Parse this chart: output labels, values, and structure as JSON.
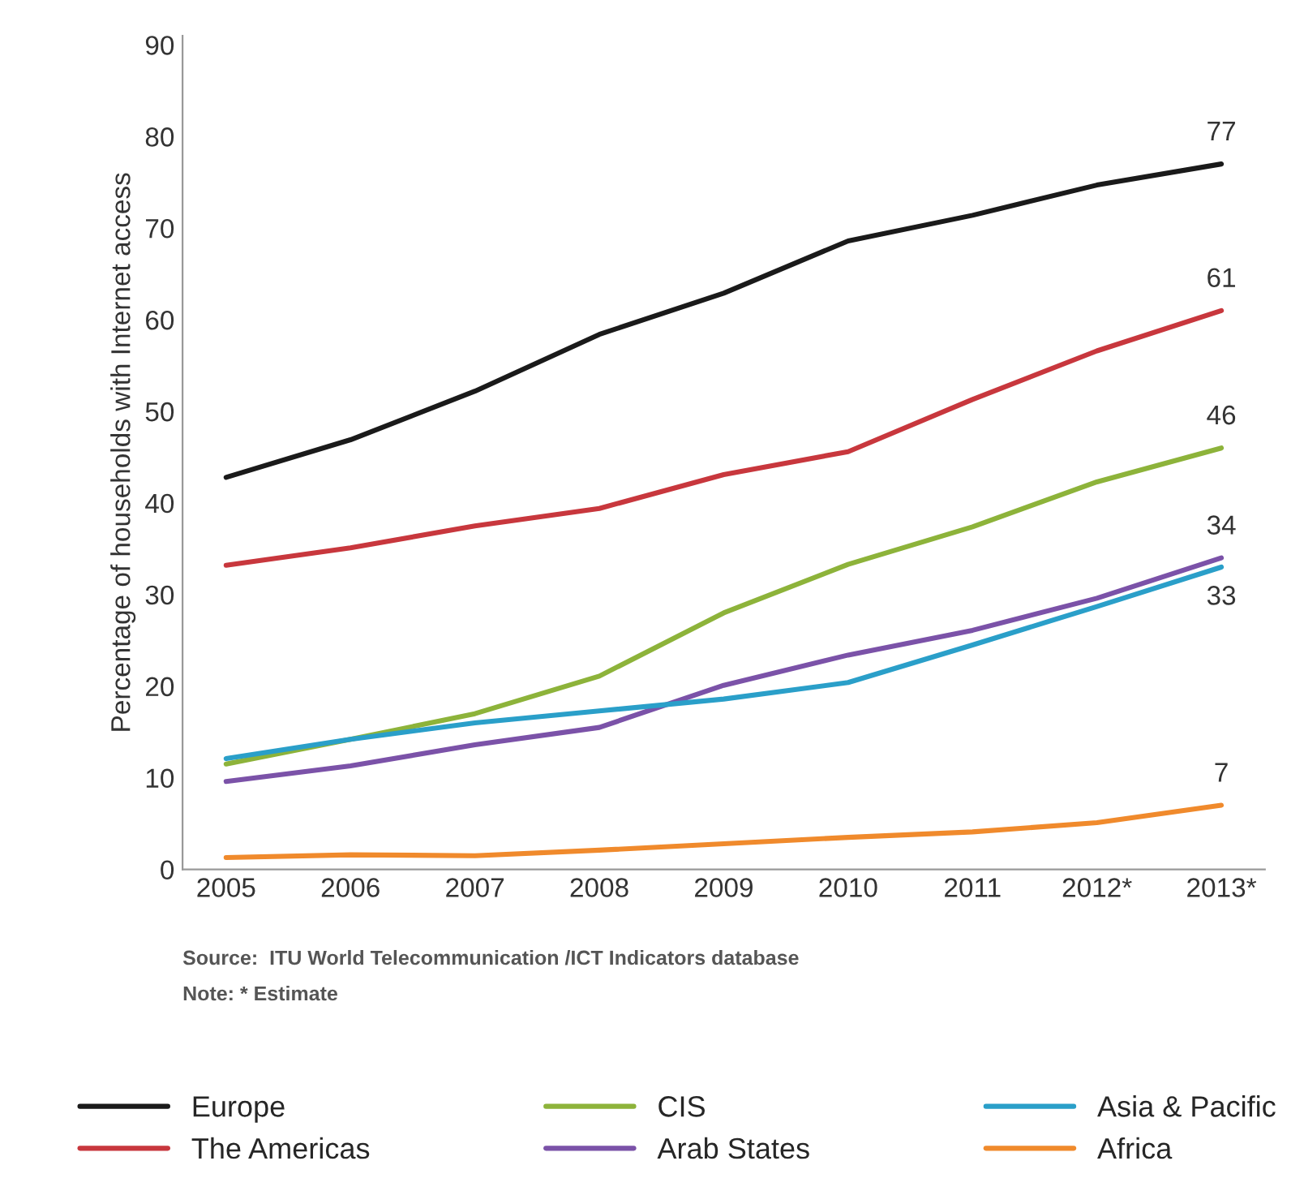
{
  "chart_data": {
    "type": "line",
    "ylabel": "Percentage of households with Internet access",
    "categories": [
      "2005",
      "2006",
      "2007",
      "2008",
      "2009",
      "2010",
      "2011",
      "2012*",
      "2013*"
    ],
    "series": [
      {
        "name": "Europe",
        "color": "#1a1a1a",
        "values": [
          42.8,
          46.9,
          52.2,
          58.4,
          62.9,
          68.6,
          71.4,
          74.7,
          77
        ],
        "value_labels": [
          null,
          null,
          null,
          null,
          null,
          null,
          null,
          null,
          "77"
        ]
      },
      {
        "name": "The Americas",
        "color": "#c8373d",
        "values": [
          33.2,
          35.1,
          37.5,
          39.4,
          43.1,
          45.6,
          51.3,
          56.6,
          61
        ],
        "value_labels": [
          null,
          null,
          null,
          null,
          null,
          null,
          null,
          null,
          "61"
        ]
      },
      {
        "name": "CIS",
        "color": "#8db33a",
        "values": [
          11.5,
          14.2,
          17,
          21.1,
          28,
          33.3,
          37.4,
          42.3,
          46
        ],
        "value_labels": [
          null,
          null,
          null,
          null,
          null,
          null,
          null,
          null,
          "46"
        ]
      },
      {
        "name": "Arab States",
        "color": "#7b52a8",
        "values": [
          9.6,
          11.3,
          13.6,
          15.5,
          20.1,
          23.4,
          26.1,
          29.6,
          34
        ],
        "value_labels": [
          null,
          null,
          null,
          null,
          null,
          null,
          null,
          null,
          "34"
        ]
      },
      {
        "name": "Asia & Pacific",
        "color": "#2a9fc9",
        "values": [
          12.1,
          14.2,
          16,
          17.3,
          18.6,
          20.4,
          24.5,
          28.7,
          33
        ],
        "value_labels": [
          null,
          null,
          null,
          null,
          null,
          null,
          null,
          null,
          "33"
        ]
      },
      {
        "name": "Africa",
        "color": "#f08a2c",
        "values": [
          1.3,
          1.6,
          1.5,
          2.1,
          2.8,
          3.5,
          4.1,
          5.1,
          7
        ],
        "value_labels": [
          null,
          null,
          null,
          null,
          null,
          null,
          null,
          null,
          "7"
        ]
      }
    ],
    "ylim": [
      0,
      91
    ],
    "yticks": [
      0,
      10,
      20,
      30,
      40,
      50,
      60,
      70,
      80,
      90
    ],
    "grid": false,
    "legend": "bottom",
    "line_style": "solid",
    "marker": "none",
    "annotations": [
      "Source:  ITU World Telecommunication /ICT Indicators database",
      "Note: * Estimate"
    ]
  }
}
